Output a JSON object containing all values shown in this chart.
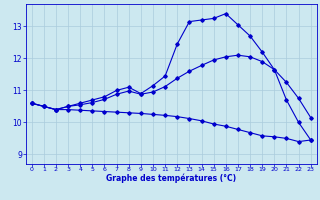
{
  "xlabel": "Graphe des températures (°C)",
  "background_color": "#cce8f0",
  "line_color": "#0000cc",
  "grid_color": "#aaccdd",
  "xlim": [
    -0.5,
    23.5
  ],
  "ylim": [
    8.7,
    13.7
  ],
  "xticks": [
    0,
    1,
    2,
    3,
    4,
    5,
    6,
    7,
    8,
    9,
    10,
    11,
    12,
    13,
    14,
    15,
    16,
    17,
    18,
    19,
    20,
    21,
    22,
    23
  ],
  "yticks": [
    9,
    10,
    11,
    12,
    13
  ],
  "line1_x": [
    0,
    1,
    2,
    3,
    4,
    5,
    6,
    7,
    8,
    9,
    10,
    11,
    12,
    13,
    14,
    15,
    16,
    17,
    18,
    19,
    20,
    21,
    22,
    23
  ],
  "line1_y": [
    10.6,
    10.5,
    10.4,
    10.5,
    10.6,
    10.7,
    10.8,
    11.0,
    11.1,
    10.9,
    11.15,
    11.45,
    12.45,
    13.15,
    13.2,
    13.25,
    13.4,
    13.05,
    12.7,
    12.2,
    11.65,
    10.7,
    10.0,
    9.45
  ],
  "line2_x": [
    0,
    1,
    2,
    3,
    4,
    5,
    6,
    7,
    8,
    9,
    10,
    11,
    12,
    13,
    14,
    15,
    16,
    17,
    18,
    19,
    20,
    21,
    22,
    23
  ],
  "line2_y": [
    10.6,
    10.5,
    10.4,
    10.5,
    10.55,
    10.62,
    10.72,
    10.88,
    10.98,
    10.88,
    10.95,
    11.12,
    11.38,
    11.6,
    11.78,
    11.95,
    12.05,
    12.1,
    12.05,
    11.9,
    11.65,
    11.25,
    10.75,
    10.15
  ],
  "line3_x": [
    0,
    1,
    2,
    3,
    4,
    5,
    6,
    7,
    8,
    9,
    10,
    11,
    12,
    13,
    14,
    15,
    16,
    17,
    18,
    19,
    20,
    21,
    22,
    23
  ],
  "line3_y": [
    10.6,
    10.5,
    10.4,
    10.4,
    10.38,
    10.36,
    10.34,
    10.32,
    10.3,
    10.28,
    10.25,
    10.22,
    10.18,
    10.12,
    10.05,
    9.95,
    9.88,
    9.78,
    9.68,
    9.58,
    9.55,
    9.5,
    9.4,
    9.45
  ]
}
